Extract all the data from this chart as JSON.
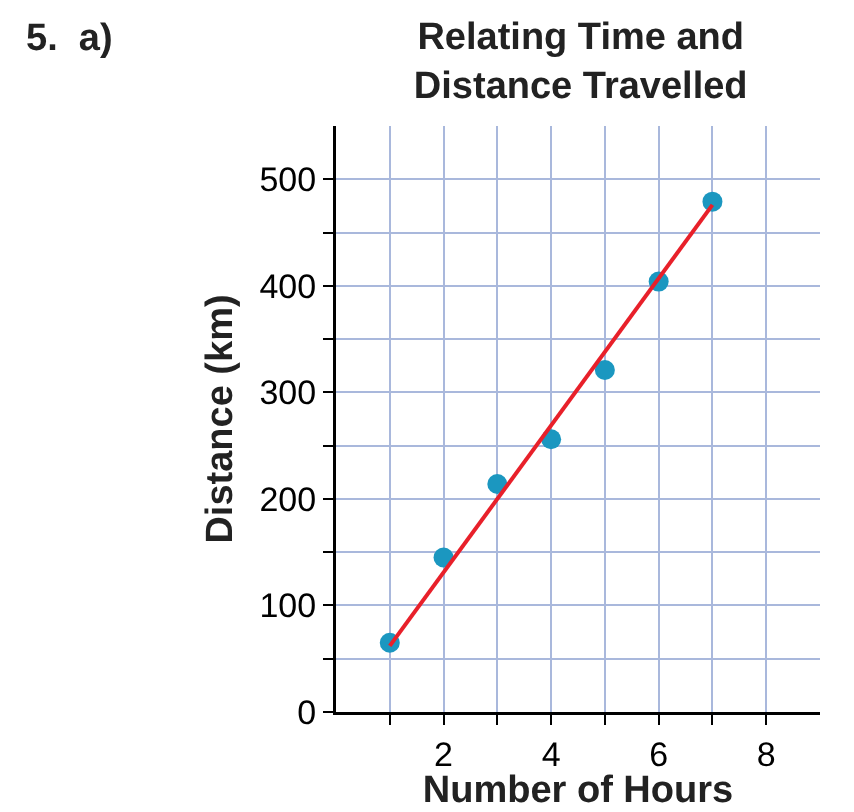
{
  "chart_data": {
    "type": "scatter",
    "title": "Relating Time and Distance Travelled",
    "xlabel": "Number of Hours",
    "ylabel": "Distance (km)",
    "annotations": [
      "5.  a)"
    ],
    "x": [
      1,
      2,
      3,
      4,
      5,
      6,
      7
    ],
    "series": [
      {
        "color": "#1b97c0",
        "marker": "circle",
        "values": [
          65,
          145,
          214,
          256,
          321,
          404,
          479
        ]
      },
      {
        "type": "line",
        "color": "#e8202a",
        "x": [
          1,
          7
        ],
        "values": [
          62,
          476
        ]
      }
    ],
    "xlim": [
      0,
      9
    ],
    "ylim": [
      0,
      550
    ],
    "xticks": [
      {
        "value": 1,
        "label": null
      },
      2,
      {
        "value": 3,
        "label": null
      },
      4,
      {
        "value": 5,
        "label": null
      },
      6,
      {
        "value": 7,
        "label": null
      },
      8
    ],
    "yticks": [
      0,
      {
        "value": 50,
        "label": null
      },
      100,
      {
        "value": 150,
        "label": null
      },
      200,
      {
        "value": 250,
        "label": null
      },
      300,
      {
        "value": 350,
        "label": null
      },
      400,
      {
        "value": 450,
        "label": null
      },
      500
    ],
    "grid": true
  }
}
